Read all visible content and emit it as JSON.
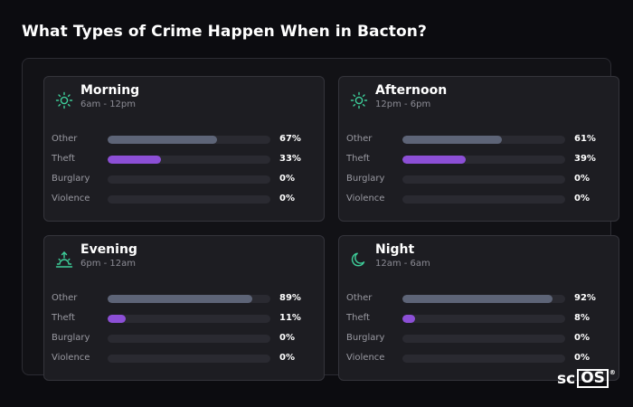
{
  "page": {
    "title": "What Types of Crime Happen When in Bacton?"
  },
  "colors": {
    "icon_accent": "#3ecf9a",
    "other_bar": "#5d6477",
    "theft_bar": "#8c4fd6",
    "track": "#2a2a31"
  },
  "cards": [
    {
      "title": "Morning",
      "subtitle": "6am - 12pm",
      "icon": "sun-icon",
      "rows": [
        {
          "label": "Other",
          "pct": "67%",
          "value": 67
        },
        {
          "label": "Theft",
          "pct": "33%",
          "value": 33
        },
        {
          "label": "Burglary",
          "pct": "0%",
          "value": 0
        },
        {
          "label": "Violence",
          "pct": "0%",
          "value": 0
        }
      ]
    },
    {
      "title": "Afternoon",
      "subtitle": "12pm - 6pm",
      "icon": "sun-icon",
      "rows": [
        {
          "label": "Other",
          "pct": "61%",
          "value": 61
        },
        {
          "label": "Theft",
          "pct": "39%",
          "value": 39
        },
        {
          "label": "Burglary",
          "pct": "0%",
          "value": 0
        },
        {
          "label": "Violence",
          "pct": "0%",
          "value": 0
        }
      ]
    },
    {
      "title": "Evening",
      "subtitle": "6pm - 12am",
      "icon": "sunset-icon",
      "rows": [
        {
          "label": "Other",
          "pct": "89%",
          "value": 89
        },
        {
          "label": "Theft",
          "pct": "11%",
          "value": 11
        },
        {
          "label": "Burglary",
          "pct": "0%",
          "value": 0
        },
        {
          "label": "Violence",
          "pct": "0%",
          "value": 0
        }
      ]
    },
    {
      "title": "Night",
      "subtitle": "12am - 6am",
      "icon": "moon-icon",
      "rows": [
        {
          "label": "Other",
          "pct": "92%",
          "value": 92
        },
        {
          "label": "Theft",
          "pct": "8%",
          "value": 8
        },
        {
          "label": "Burglary",
          "pct": "0%",
          "value": 0
        },
        {
          "label": "Violence",
          "pct": "0%",
          "value": 0
        }
      ]
    }
  ],
  "logo": {
    "text_sc": "sc",
    "text_os": "OS",
    "reg": "®"
  }
}
